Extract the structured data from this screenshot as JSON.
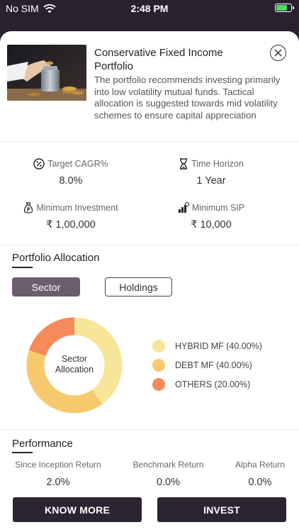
{
  "status_bar": {
    "carrier": "No SIM",
    "time": "2:48 PM"
  },
  "header": {
    "title": "Conservative Fixed Income Portfolio",
    "description": "The portfolio recommends investing primarily into low volatility mutual funds. Tactical allocation is suggested towards mid volatility schemes to ensure capital appreciation"
  },
  "metrics": [
    {
      "label": "Target CAGR%",
      "value": "8.0%",
      "icon": "percent-icon"
    },
    {
      "label": "Time Horizon",
      "value": "1 Year",
      "icon": "hourglass-icon"
    },
    {
      "label": "Minimum Investment",
      "value": "₹ 1,00,000",
      "icon": "money-bag-icon"
    },
    {
      "label": "Minimum SIP",
      "value": "₹ 10,000",
      "icon": "chart-coin-icon"
    }
  ],
  "allocation": {
    "title": "Portfolio Allocation",
    "tabs": {
      "sector": "Sector",
      "holdings": "Holdings"
    },
    "donut_label_line1": "Sector",
    "donut_label_line2": "Allocation",
    "legend": [
      {
        "label": "HYBRID MF (40.00%)",
        "value": 40,
        "color": "#f7e69a"
      },
      {
        "label": "DEBT MF (40.00%)",
        "value": 40,
        "color": "#f6ca6c"
      },
      {
        "label": "OTHERS (20.00%)",
        "value": 20,
        "color": "#f58a5a"
      }
    ]
  },
  "performance": {
    "title": "Performance",
    "items": [
      {
        "label": "Since Inception Return",
        "value": "2.0%"
      },
      {
        "label": "Benchmark Return",
        "value": "0.0%"
      },
      {
        "label": "Alpha Return",
        "value": "0.0%"
      }
    ]
  },
  "actions": {
    "know_more": "KNOW MORE",
    "invest": "INVEST"
  }
}
